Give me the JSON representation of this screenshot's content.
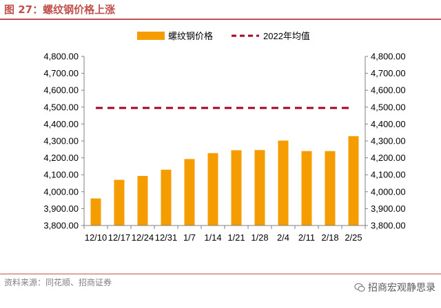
{
  "figure": {
    "title": "图 27：螺纹钢价格上涨",
    "source": "资料来源：同花顺、招商证券",
    "watermark": "招商宏观静思录"
  },
  "chart_data": {
    "type": "bar",
    "categories": [
      "12/10",
      "12/17",
      "12/24",
      "12/31",
      "1/7",
      "1/14",
      "1/21",
      "1/28",
      "2/4",
      "2/11",
      "2/18",
      "2/25"
    ],
    "series": [
      {
        "name": "螺纹钢价格",
        "type": "bar",
        "color": "#f59c00",
        "values": [
          3960,
          4070,
          4093,
          4130,
          4193,
          4228,
          4245,
          4246,
          4302,
          4240,
          4240,
          4328
        ]
      },
      {
        "name": "2022年均值",
        "type": "line",
        "style": "dashed",
        "color": "#a50021",
        "values": [
          4495,
          4495,
          4495,
          4495,
          4495,
          4495,
          4495,
          4495,
          4495,
          4495,
          4495,
          4495
        ]
      }
    ],
    "ylim": [
      3800,
      4800
    ],
    "yticks": [
      "3,800.00",
      "3,900.00",
      "4,000.00",
      "4,100.00",
      "4,200.00",
      "4,300.00",
      "4,400.00",
      "4,500.00",
      "4,600.00",
      "4,700.00",
      "4,800.00"
    ],
    "y_axis_right": true,
    "grid": false,
    "legend": "top-center"
  }
}
